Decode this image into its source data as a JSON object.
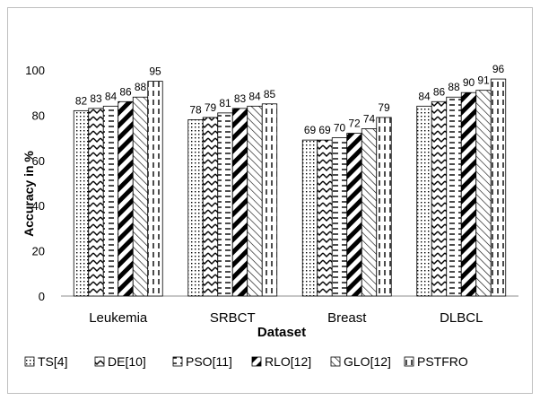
{
  "chart_data": {
    "type": "bar",
    "title": "",
    "xlabel": "Dataset",
    "ylabel": "Accuracy in %",
    "ylim": [
      0,
      100
    ],
    "yticks": [
      0,
      20,
      40,
      60,
      80,
      100
    ],
    "grid": false,
    "legend_position": "bottom",
    "categories": [
      "Leukemia",
      "SRBCT",
      "Breast",
      "DLBCL"
    ],
    "series": [
      {
        "name": "TS[4]",
        "pattern": "dots",
        "values": [
          82,
          78,
          69,
          84
        ]
      },
      {
        "name": "DE[10]",
        "pattern": "zigzag",
        "values": [
          83,
          79,
          69,
          86
        ]
      },
      {
        "name": "PSO[11]",
        "pattern": "horizontal-dashes",
        "values": [
          84,
          81,
          70,
          88
        ]
      },
      {
        "name": "RLO[12]",
        "pattern": "wide-diagonal",
        "values": [
          86,
          83,
          72,
          90
        ]
      },
      {
        "name": "GLO[12]",
        "pattern": "thin-diagonal",
        "values": [
          88,
          84,
          74,
          91
        ]
      },
      {
        "name": "PSTFRO",
        "pattern": "vertical-dashes",
        "values": [
          95,
          85,
          79,
          96
        ]
      }
    ]
  }
}
